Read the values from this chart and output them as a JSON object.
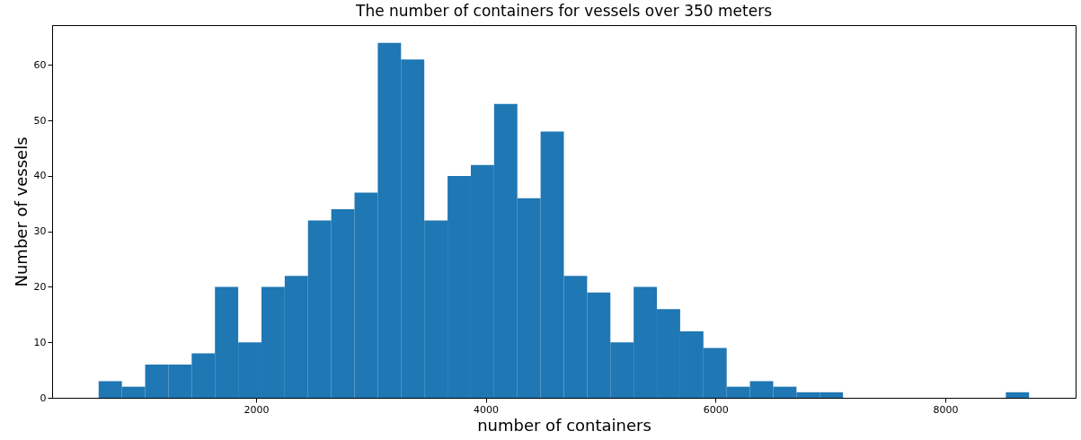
{
  "chart_data": {
    "type": "histogram",
    "title": "The number of containers for vessels over 350 meters",
    "xlabel": "number of containers",
    "ylabel": "Number of vessels",
    "color": "#1f77b4",
    "bins": [
      630,
      832.5,
      1035,
      1237.5,
      1440,
      1642.5,
      1845,
      2047.5,
      2250,
      2452.5,
      2655,
      2857.5,
      3060,
      3262.5,
      3465,
      3667.5,
      3870,
      4072.5,
      4275,
      4477.5,
      4680,
      4882.5,
      5085,
      5287.5,
      5490,
      5692.5,
      5895,
      6097.5,
      6300,
      6502.5,
      6705,
      6907.5,
      7110,
      7312.5,
      7515,
      7717.5,
      7920,
      8122.5,
      8325,
      8527.5,
      8730
    ],
    "values": [
      3,
      2,
      6,
      6,
      8,
      20,
      10,
      20,
      22,
      32,
      34,
      37,
      64,
      61,
      32,
      40,
      42,
      53,
      36,
      48,
      22,
      19,
      10,
      20,
      16,
      12,
      9,
      2,
      3,
      2,
      1,
      1,
      0,
      0,
      0,
      0,
      0,
      0,
      0,
      1
    ],
    "xlim": [
      225,
      9135
    ],
    "ylim": [
      0,
      67.2
    ],
    "xticks": [
      2000,
      4000,
      6000,
      8000
    ],
    "yticks": [
      0,
      10,
      20,
      30,
      40,
      50,
      60
    ]
  }
}
